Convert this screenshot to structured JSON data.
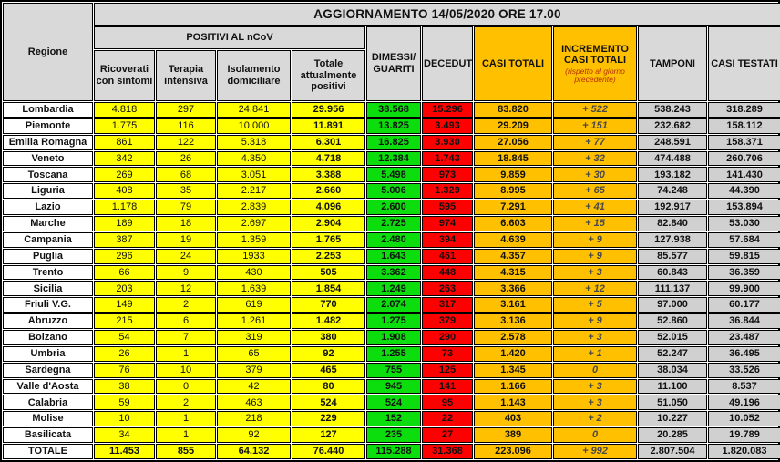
{
  "title": "AGGIORNAMENTO 14/05/2020 ORE 17.00",
  "colors": {
    "positivi_yellow": "#ffff00",
    "dimessi_green": "#0cdd0c",
    "deceduti_red": "#fe0000",
    "casi_orange": "#ffc000",
    "header_gray": "#d9d9d9",
    "tamponi_gray": "#d0d0d0"
  },
  "table": {
    "region_header": "Regione",
    "positivi_band": "POSITIVI AL nCoV",
    "columns": [
      "Ricoverati con sintomi",
      "Terapia intensiva",
      "Isolamento domiciliare",
      "Totale attualmente positivi",
      "DIMESSI/ GUARITI",
      "DECEDUTI",
      "CASI TOTALI",
      "INCREMENTO CASI TOTALI",
      "TAMPONI",
      "CASI TESTATI"
    ],
    "incremento_note": "(rispetto al giorno precedente)",
    "rows": [
      {
        "region": "Lombardia",
        "values": [
          "4.818",
          "297",
          "24.841",
          "29.956",
          "38.568",
          "15.296",
          "83.820",
          "+ 522",
          "538.243",
          "318.289"
        ]
      },
      {
        "region": "Piemonte",
        "values": [
          "1.775",
          "116",
          "10.000",
          "11.891",
          "13.825",
          "3.493",
          "29.209",
          "+ 151",
          "232.682",
          "158.112"
        ]
      },
      {
        "region": "Emilia Romagna",
        "values": [
          "861",
          "122",
          "5.318",
          "6.301",
          "16.825",
          "3.930",
          "27.056",
          "+ 77",
          "248.591",
          "158.371"
        ]
      },
      {
        "region": "Veneto",
        "values": [
          "342",
          "26",
          "4.350",
          "4.718",
          "12.384",
          "1.743",
          "18.845",
          "+ 32",
          "474.488",
          "260.706"
        ]
      },
      {
        "region": "Toscana",
        "values": [
          "269",
          "68",
          "3.051",
          "3.388",
          "5.498",
          "973",
          "9.859",
          "+ 30",
          "193.182",
          "141.430"
        ]
      },
      {
        "region": "Liguria",
        "values": [
          "408",
          "35",
          "2.217",
          "2.660",
          "5.006",
          "1.329",
          "8.995",
          "+ 65",
          "74.248",
          "44.390"
        ]
      },
      {
        "region": "Lazio",
        "values": [
          "1.178",
          "79",
          "2.839",
          "4.096",
          "2.600",
          "595",
          "7.291",
          "+ 41",
          "192.917",
          "153.894"
        ]
      },
      {
        "region": "Marche",
        "values": [
          "189",
          "18",
          "2.697",
          "2.904",
          "2.725",
          "974",
          "6.603",
          "+ 15",
          "82.840",
          "53.030"
        ]
      },
      {
        "region": "Campania",
        "values": [
          "387",
          "19",
          "1.359",
          "1.765",
          "2.480",
          "394",
          "4.639",
          "+ 9",
          "127.938",
          "57.684"
        ]
      },
      {
        "region": "Puglia",
        "values": [
          "296",
          "24",
          "1933",
          "2.253",
          "1.643",
          "461",
          "4.357",
          "+ 9",
          "85.577",
          "59.815"
        ]
      },
      {
        "region": "Trento",
        "values": [
          "66",
          "9",
          "430",
          "505",
          "3.362",
          "448",
          "4.315",
          "+ 3",
          "60.843",
          "36.359"
        ]
      },
      {
        "region": "Sicilia",
        "values": [
          "203",
          "12",
          "1.639",
          "1.854",
          "1.249",
          "263",
          "3.366",
          "+ 12",
          "111.137",
          "99.900"
        ]
      },
      {
        "region": "Friuli V.G.",
        "values": [
          "149",
          "2",
          "619",
          "770",
          "2.074",
          "317",
          "3.161",
          "+ 5",
          "97.000",
          "60.177"
        ]
      },
      {
        "region": "Abruzzo",
        "values": [
          "215",
          "6",
          "1.261",
          "1.482",
          "1.275",
          "379",
          "3.136",
          "+ 9",
          "52.860",
          "36.844"
        ]
      },
      {
        "region": "Bolzano",
        "values": [
          "54",
          "7",
          "319",
          "380",
          "1.908",
          "290",
          "2.578",
          "+ 3",
          "52.015",
          "23.487"
        ]
      },
      {
        "region": "Umbria",
        "values": [
          "26",
          "1",
          "65",
          "92",
          "1.255",
          "73",
          "1.420",
          "+ 1",
          "52.247",
          "36.495"
        ]
      },
      {
        "region": "Sardegna",
        "values": [
          "76",
          "10",
          "379",
          "465",
          "755",
          "125",
          "1.345",
          "0",
          "38.034",
          "33.526"
        ]
      },
      {
        "region": "Valle d'Aosta",
        "values": [
          "38",
          "0",
          "42",
          "80",
          "945",
          "141",
          "1.166",
          "+ 3",
          "11.100",
          "8.537"
        ]
      },
      {
        "region": "Calabria",
        "values": [
          "59",
          "2",
          "463",
          "524",
          "524",
          "95",
          "1.143",
          "+ 3",
          "51.050",
          "49.196"
        ]
      },
      {
        "region": "Molise",
        "values": [
          "10",
          "1",
          "218",
          "229",
          "152",
          "22",
          "403",
          "+ 2",
          "10.227",
          "10.052"
        ]
      },
      {
        "region": "Basilicata",
        "values": [
          "34",
          "1",
          "92",
          "127",
          "235",
          "27",
          "389",
          "0",
          "20.285",
          "19.789"
        ]
      }
    ],
    "total": {
      "region": "TOTALE",
      "values": [
        "11.453",
        "855",
        "64.132",
        "76.440",
        "115.288",
        "31.368",
        "223.096",
        "+ 992",
        "2.807.504",
        "1.820.083"
      ]
    }
  }
}
